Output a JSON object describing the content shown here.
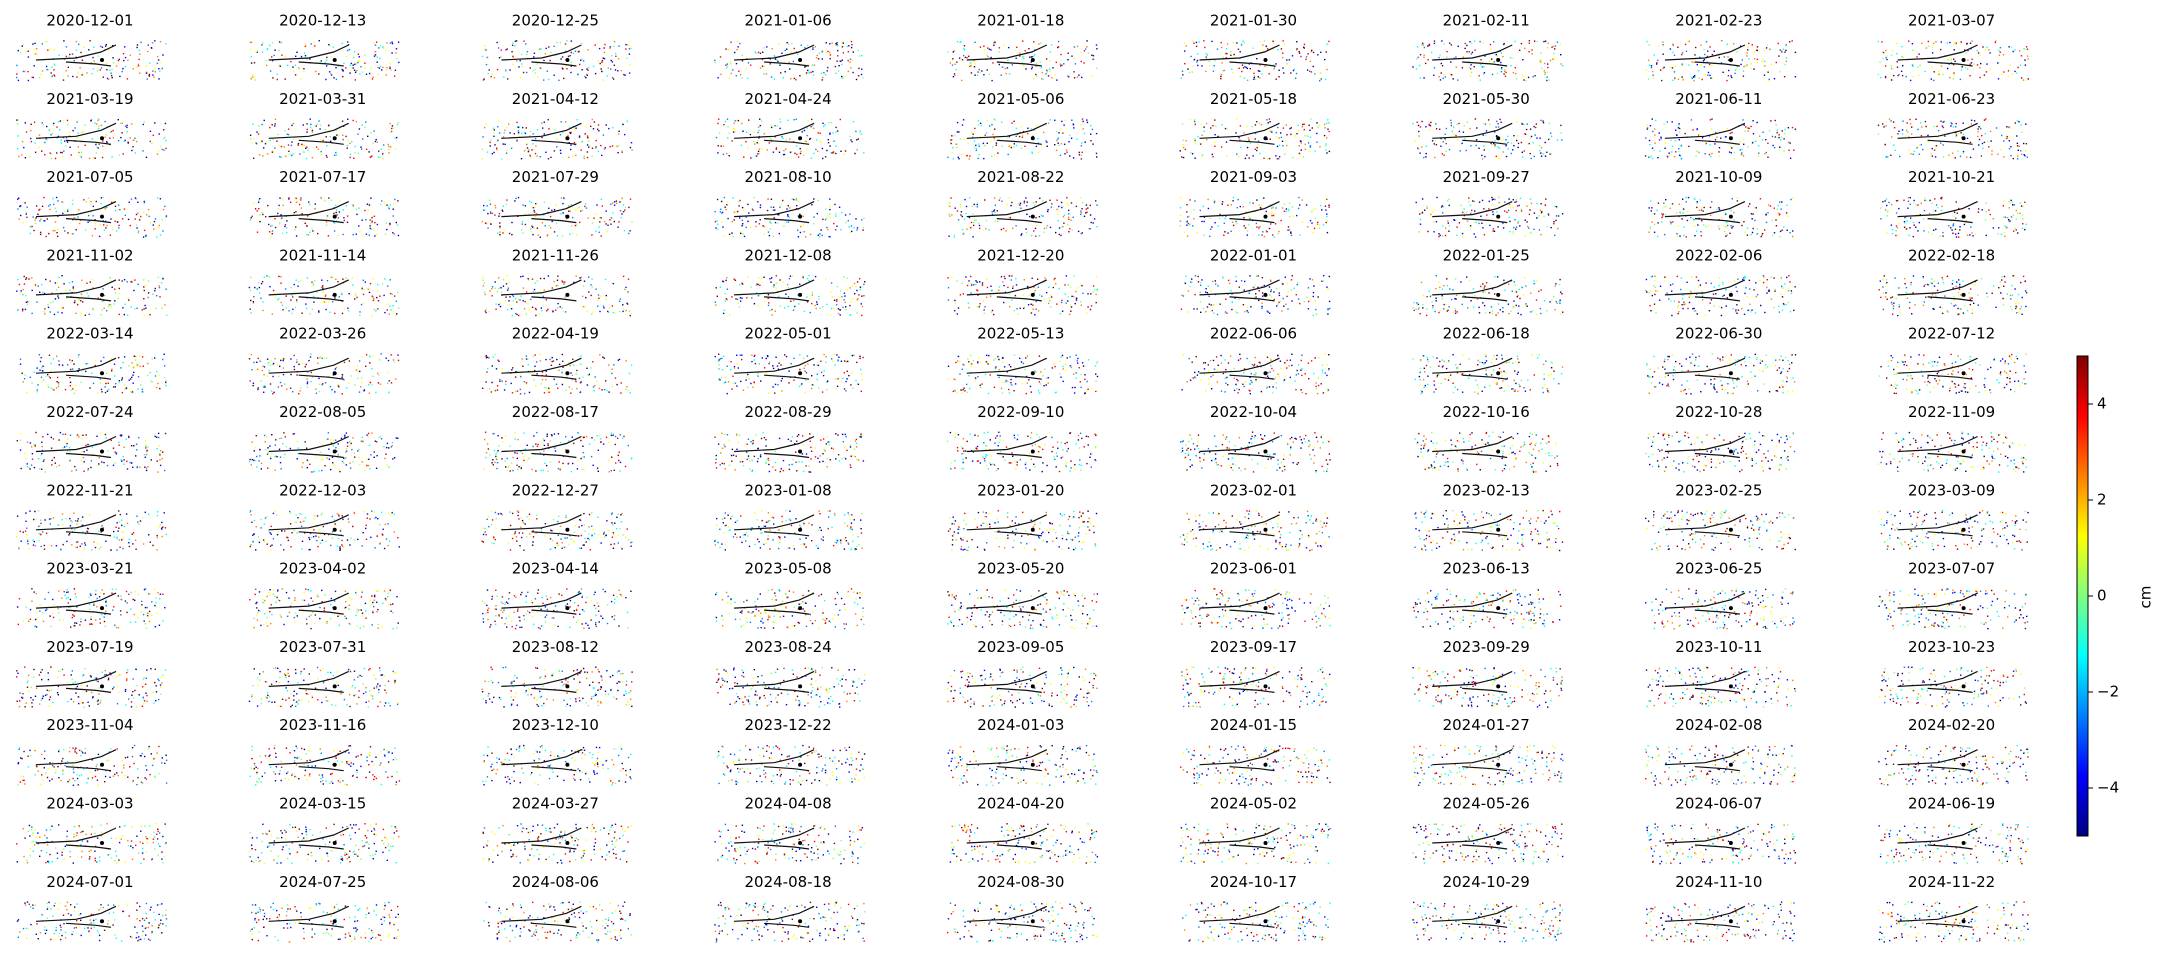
{
  "chart_data": {
    "type": "small-multiples",
    "titles": [
      "2020-12-01",
      "2020-12-13",
      "2020-12-25",
      "2021-01-06",
      "2021-01-18",
      "2021-01-30",
      "2021-02-11",
      "2021-02-23",
      "2021-03-07",
      "2021-03-19",
      "2021-03-31",
      "2021-04-12",
      "2021-04-24",
      "2021-05-06",
      "2021-05-18",
      "2021-05-30",
      "2021-06-11",
      "2021-06-23",
      "2021-07-05",
      "2021-07-17",
      "2021-07-29",
      "2021-08-10",
      "2021-08-22",
      "2021-09-03",
      "2021-09-27",
      "2021-10-09",
      "2021-10-21",
      "2021-11-02",
      "2021-11-14",
      "2021-11-26",
      "2021-12-08",
      "2021-12-20",
      "2022-01-01",
      "2022-01-25",
      "2022-02-06",
      "2022-02-18",
      "2022-03-14",
      "2022-03-26",
      "2022-04-19",
      "2022-05-01",
      "2022-05-13",
      "2022-06-06",
      "2022-06-18",
      "2022-06-30",
      "2022-07-12",
      "2022-07-24",
      "2022-08-05",
      "2022-08-17",
      "2022-08-29",
      "2022-09-10",
      "2022-10-04",
      "2022-10-16",
      "2022-10-28",
      "2022-11-09",
      "2022-11-21",
      "2022-12-03",
      "2022-12-27",
      "2023-01-08",
      "2023-01-20",
      "2023-02-01",
      "2023-02-13",
      "2023-02-25",
      "2023-03-09",
      "2023-03-21",
      "2023-04-02",
      "2023-04-14",
      "2023-05-08",
      "2023-05-20",
      "2023-06-01",
      "2023-06-13",
      "2023-06-25",
      "2023-07-07",
      "2023-07-19",
      "2023-07-31",
      "2023-08-12",
      "2023-08-24",
      "2023-09-05",
      "2023-09-17",
      "2023-09-29",
      "2023-10-11",
      "2023-10-23",
      "2023-11-04",
      "2023-11-16",
      "2023-12-10",
      "2023-12-22",
      "2024-01-03",
      "2024-01-15",
      "2024-01-27",
      "2024-02-08",
      "2024-02-20",
      "2024-03-03",
      "2024-03-15",
      "2024-03-27",
      "2024-04-08",
      "2024-04-20",
      "2024-05-02",
      "2024-05-26",
      "2024-06-07",
      "2024-06-19",
      "2024-07-01",
      "2024-07-25",
      "2024-08-06",
      "2024-08-18",
      "2024-08-30",
      "2024-10-17",
      "2024-10-29",
      "2024-11-10",
      "2024-11-22"
    ],
    "colorbar": {
      "label": "cm",
      "lim": [
        -5,
        5
      ],
      "ticks": [
        {
          "value": -4,
          "label": "−4"
        },
        {
          "value": -2,
          "label": "−2"
        },
        0,
        2,
        4
      ],
      "colormap": [
        "#00007f",
        "#0000ff",
        "#007fff",
        "#00ffff",
        "#7fff7f",
        "#ffff00",
        "#ff7f00",
        "#ff0000",
        "#7f0000"
      ]
    }
  }
}
